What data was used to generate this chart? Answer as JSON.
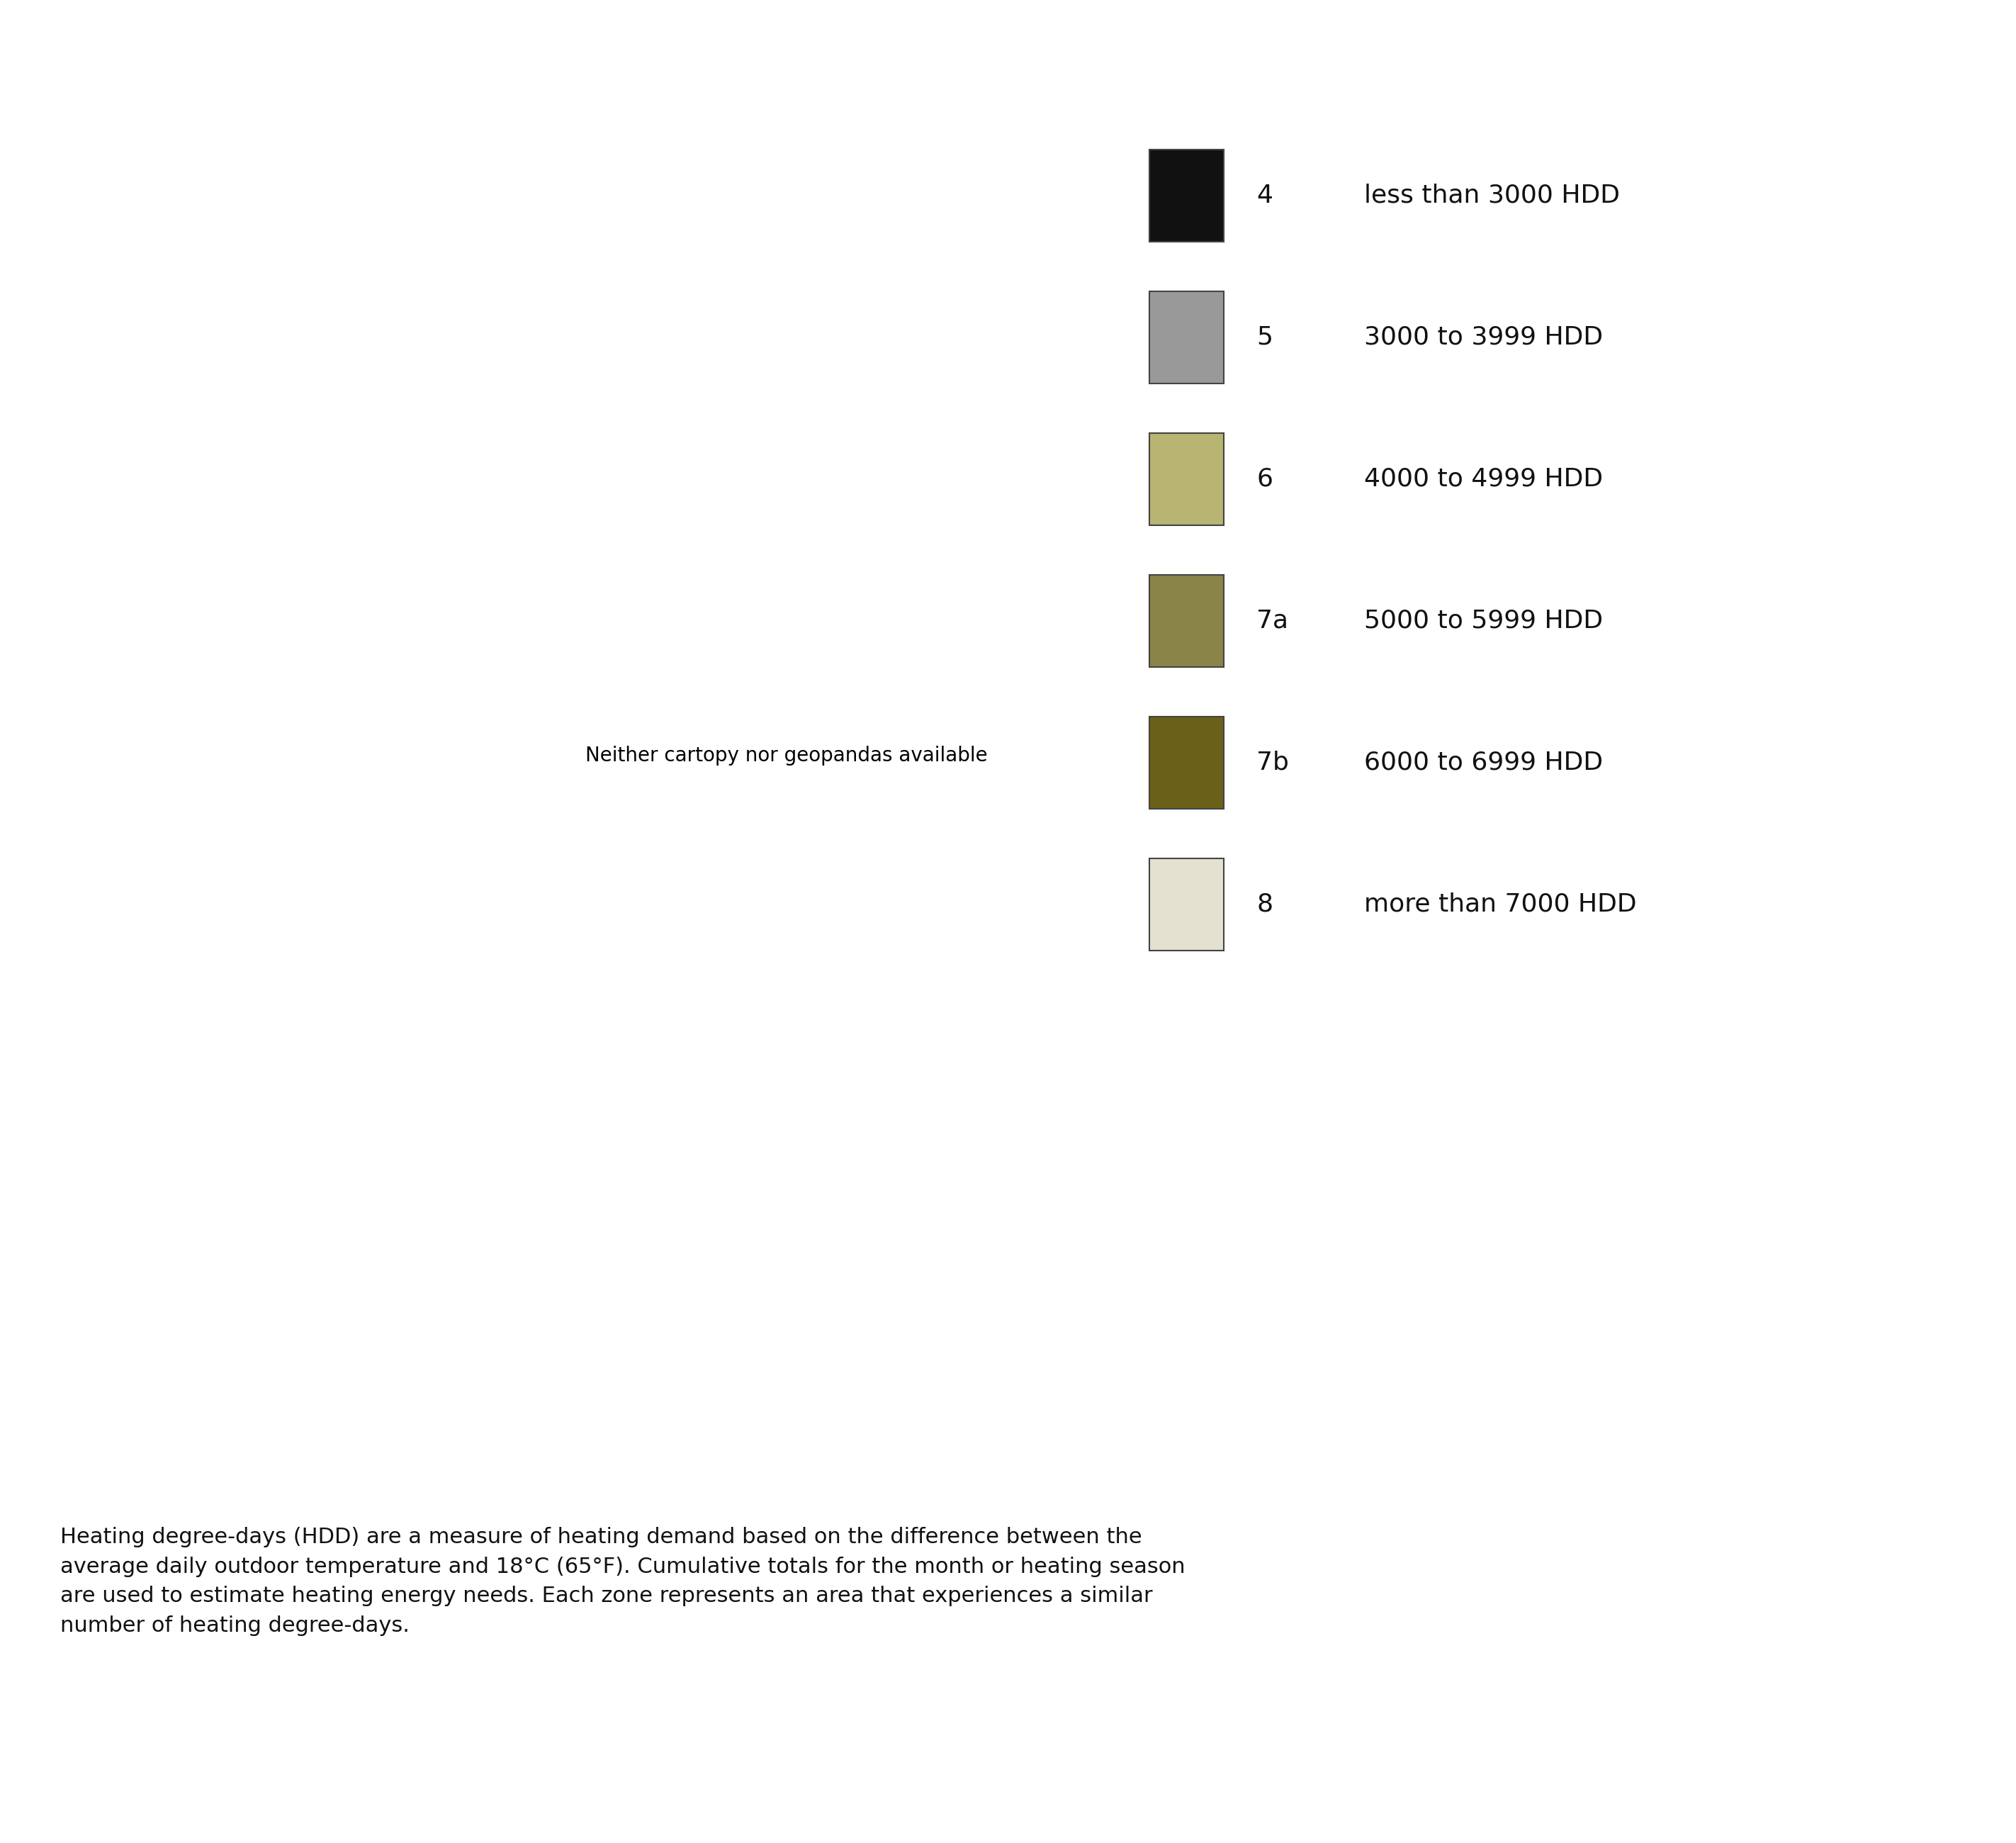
{
  "legend_entries": [
    {
      "zone": "4",
      "label": "less than 3000 HDD",
      "color": "#111111"
    },
    {
      "zone": "5",
      "label": "3000 to 3999 HDD",
      "color": "#999999"
    },
    {
      "zone": "6",
      "label": "4000 to 4999 HDD",
      "color": "#b8b472"
    },
    {
      "zone": "7a",
      "label": "5000 to 5999 HDD",
      "color": "#8a8448"
    },
    {
      "zone": "7b",
      "label": "6000 to 6999 HDD",
      "color": "#6b6018"
    },
    {
      "zone": "8",
      "label": "more than 7000 HDD",
      "color": "#e5e1d0"
    }
  ],
  "caption_line1": "Heating degree-days (HDD) are a measure of heating demand based on the difference between the",
  "caption_line2": "average daily outdoor temperature and 18°C (65°F). Cumulative totals for the month or heating season",
  "caption_line3": "are used to estimate heating energy needs. Each zone represents an area that experiences a similar",
  "caption_line4": "number of heating degree-days.",
  "background_color": "#ffffff",
  "outline_color": "#2a2a2a",
  "dashed_line_color": "#ffffff",
  "caption_fontsize": 22,
  "legend_fontsize": 26,
  "figsize": [
    28.45,
    26.0
  ]
}
